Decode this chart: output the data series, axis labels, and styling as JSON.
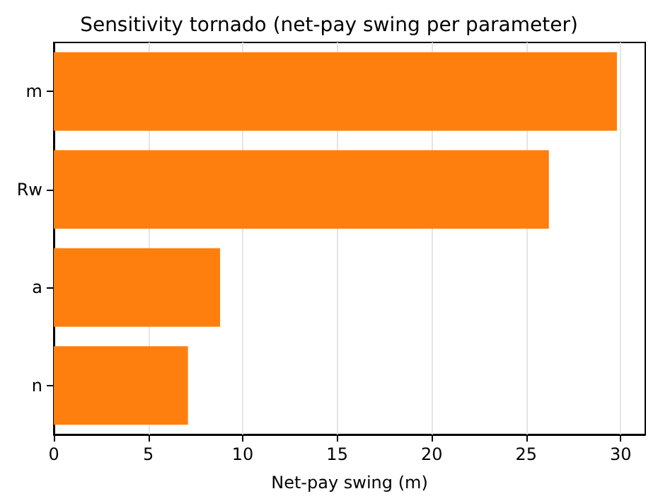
{
  "chart_data": {
    "type": "bar",
    "orientation": "horizontal",
    "title": "Sensitivity tornado (net-pay swing per parameter)",
    "xlabel": "Net-pay swing (m)",
    "categories": [
      "m",
      "Rw",
      "a",
      "n"
    ],
    "values": [
      29.8,
      26.2,
      8.8,
      7.1
    ],
    "color": "#ff7f0e",
    "xlim": [
      0,
      31.3
    ],
    "xticks": [
      0,
      5,
      10,
      15,
      20,
      25,
      30
    ],
    "grid": "x"
  }
}
